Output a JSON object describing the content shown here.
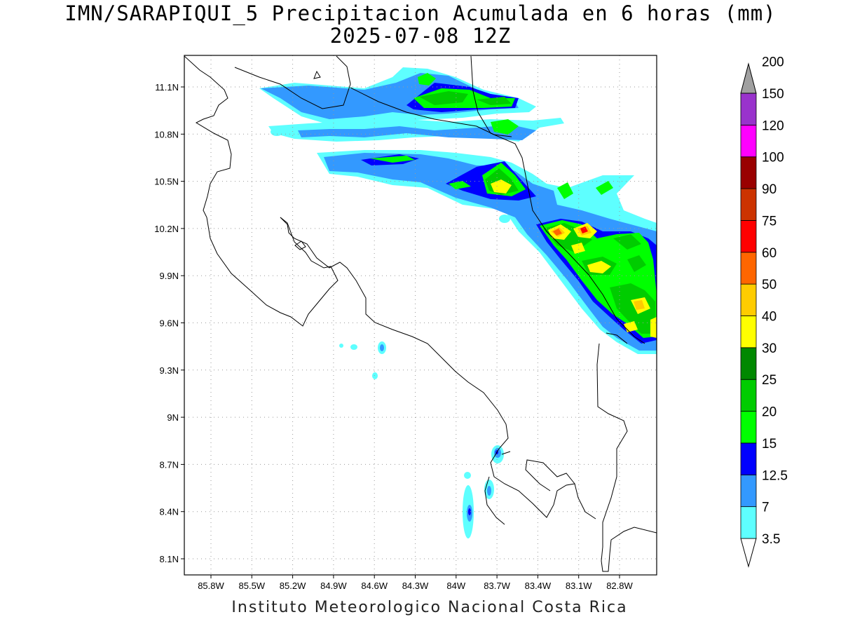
{
  "title": {
    "line1": "IMN/SARAPIQUI_5 Precipitacion Acumulada en 6 horas (mm)",
    "line2": "2025-07-08 12Z"
  },
  "credit": "Instituto Meteorologico Nacional Costa Rica",
  "axes": {
    "lon_ticks": [
      "85.8W",
      "85.5W",
      "85.2W",
      "84.9W",
      "84.6W",
      "84.3W",
      "84W",
      "83.7W",
      "83.4W",
      "83.1W",
      "82.8W"
    ],
    "lat_ticks": [
      "11.1N",
      "10.8N",
      "10.5N",
      "10.2N",
      "9.9N",
      "9.6N",
      "9.3N",
      "9N",
      "8.7N",
      "8.4N",
      "8.1N"
    ],
    "lon_range": [
      -86.0,
      -82.5
    ],
    "lat_range": [
      8.0,
      11.3
    ],
    "grid": "dotted"
  },
  "colorbar": {
    "levels": [
      "3.5",
      "7",
      "12.5",
      "15",
      "20",
      "25",
      "30",
      "40",
      "50",
      "60",
      "75",
      "90",
      "100",
      "120",
      "150",
      "200"
    ],
    "colors": [
      "#5effff",
      "#3399ff",
      "#0000ff",
      "#00ff00",
      "#00cc00",
      "#008800",
      "#ffff00",
      "#ffcc00",
      "#ff6600",
      "#ff0000",
      "#cc3300",
      "#990000",
      "#ff00ff",
      "#9933cc",
      "#f0f0f0",
      "#a0a0a0"
    ],
    "extend": "both"
  },
  "colors": {
    "coast": "#000000",
    "grid": "#9a9a9a",
    "frame": "#000000"
  }
}
